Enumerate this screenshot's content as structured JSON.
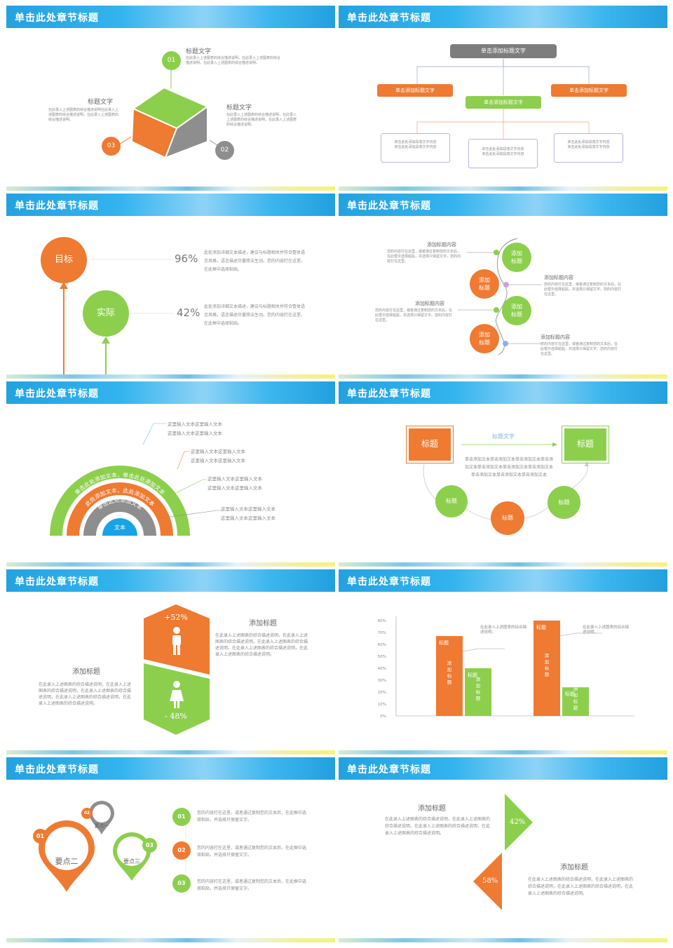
{
  "slide_title": "单击此处章节标题",
  "colors": {
    "orange": "#ef7a31",
    "green": "#8ccf4d",
    "gray": "#8e8e8e",
    "blue": "#1aa2e6",
    "text": "#666666"
  },
  "s1": {
    "n1": "01",
    "n2": "02",
    "n3": "03",
    "t1": "标题文字",
    "t2": "标题文字",
    "t3": "标题文字",
    "d1": "在此录入上述图表的综合描述说明，在此录入上述图表的综合描述说明，在此录入上述图表的综合描述说明。",
    "d2": "在此录入上述图表的综合描述说明，在此录入上述图表的综合描述说明，在此录入上述图表的综合描述说明。",
    "d3": "在此录入上述图表的综合描述说明在此录入上述图表的综合描述说明，在此录入上述图表的综合描述说明。"
  },
  "s2": {
    "top": "单击添加标题文字",
    "left": "单击添加标题文字",
    "mid": "单击添加标题文字",
    "right": "单击添加标题文字",
    "box_l": "单击此处添加段落文字内容\n单击此处添加段落文字内容",
    "box_m": "单击此处添加段落文字内容\n单击此处添加段落文字内容",
    "box_r": "单击此处添加段落文字内容\n单击此处添加段落文字内容"
  },
  "s3": {
    "goal": "目标",
    "actual": "实际",
    "p1": "96%",
    "p2": "42%",
    "d1": "此处添加详细文本描述，建议与标题相关并符合整体语言风格，语言描述尽量简洁生动。您的内容打在这里，在此框中选择粘贴。",
    "d2": "此处添加详细文本描述，建议与标题相关并符合整体语言风格，语言描述尽量简洁生动。您的内容打在这里，在此框中选择粘贴。"
  },
  "s4": {
    "c1": "添加\n标题",
    "c2": "添加\n标题",
    "c3": "添加\n标题",
    "c4": "添加\n标题",
    "h1": "添加标题内容",
    "h2": "添加标题内容",
    "h3": "添加标题内容",
    "h4": "添加标题内容",
    "d1": "您的内容打在这里，或者通过复制您的文本后，在此框中选择粘贴，并选择只保留文字。您的内容打在这里。",
    "d2": "您的内容打在这里，或者通过复制您的文本后，在此框中选择粘贴，并选择只保留文字。您的内容打在这里。",
    "d3": "您的内容打在这里，或者通过复制您的文本后，在此框中选择粘贴，并选择只保留文字。您的内容打在这里。",
    "d4": "您的内容打在这里，或者通过复制您的文本后，在此框中选择粘贴，并选择只保留文字。您的内容打在这里。"
  },
  "s5": {
    "arc1": "单击此处添加文本，单击此处添加文本",
    "arc2": "此处添加文本，此处添加文本",
    "arc3": "单击此处添加文本",
    "center": "文本",
    "l1a": "这里输入文本这里输入文本",
    "l1b": "这里输入文本这里输入文本",
    "l2a": "这里输入文本这里输入文本",
    "l2b": "这里输入文本这里输入文本",
    "l3a": "这里输入文本这里输入文本",
    "l3b": "这里输入文本这里输入文本",
    "l4a": "这里输入文本这里输入文本",
    "l4b": "这里输入文本这里输入文本"
  },
  "s6": {
    "left_title": "标题",
    "right_title": "标题",
    "arrow_text": "标题文字",
    "desc": "单击添加文本单击添加文本单击添加文本单击添加文本单击添加文本单击添加文本单击添加文本单击添加文本单击添加文本单击添加文本",
    "c1": "标题",
    "c2": "标题",
    "c3": "标题"
  },
  "s7": {
    "up": "+52%",
    "down": "- 48%",
    "title_r": "添加标题",
    "title_l": "添加标题",
    "desc_r": "在此录入上述图表的综合描述说明，在此录入上述图表的综合描述说明，在此录入上述图表的综合描述说明，在此录入上述图表的综合描述说明，在此录入上述图表的综合描述说明。",
    "desc_l": "在此录入上述图表的综合描述说明，在此录入上述图表的综合描述说明，在此录入上述图表的综合描述说明，在此录入上述图表的综合描述说明，在此录入上述图表的综合描述说明。"
  },
  "chart_data": {
    "type": "bar",
    "yticks": [
      "80%",
      "70%",
      "60%",
      "50%",
      "40%",
      "30%",
      "20%",
      "10%",
      "0%"
    ],
    "ylim": [
      0,
      80
    ],
    "groups": [
      {
        "orange": {
          "value": 67,
          "top": "标题",
          "body": "添加\n标题"
        },
        "green": {
          "value": 40,
          "top": "标题",
          "body": "添加\n标题"
        },
        "note": "在此录入上述图表的综合描述说明，"
      },
      {
        "orange": {
          "value": 80,
          "top": "标题",
          "body": "添加\n标题"
        },
        "green": {
          "value": 24,
          "top": "标题",
          "body": "添加\n标题"
        },
        "note": "在此录入上述图表的综合描述说明，"
      }
    ]
  },
  "s9": {
    "pin1": "要点一",
    "pin2": "要点二",
    "pin3": "要点三",
    "n1": "01",
    "n2": "02",
    "n3": "03",
    "i1": "01",
    "i2": "02",
    "i3": "03",
    "t1": "您的内容打在这里，或者通过复制您的文本后，在此框中选择粘贴，并选择只保留文字。",
    "t2": "您的内容打在这里，或者通过复制您的文本后，在此框中选择粘贴，并选择只保留文字。",
    "t3": "您的内容打在这里，或者通过复制您的文本后，在此框中选择粘贴，并选择只保留文字。"
  },
  "s10": {
    "title1": "添加标题",
    "title2": "添加标题",
    "p1": "42%",
    "p2": "58%",
    "d1": "在此录入上述图表的综合描述说明，在此录入上述图表的综合描述说明，在此录入上述图表的综合描述说明，在此录入上述图表的综合描述说明。",
    "d2": "在此录入上述图表的综合描述说明，在此录入上述图表的综合描述说明，在此录入上述图表的综合描述说明，在此录入上述图表的综合描述说明。"
  }
}
